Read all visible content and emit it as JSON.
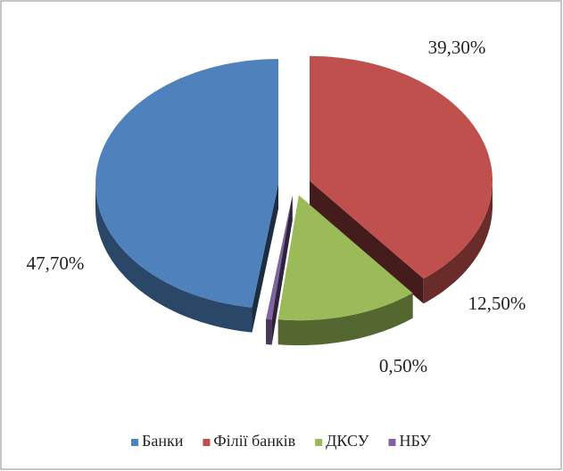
{
  "chart_data": {
    "type": "pie3d",
    "categories": [
      "Банки",
      "Філії банків",
      "ДКСУ",
      "НБУ"
    ],
    "values": [
      47.7,
      39.3,
      12.5,
      0.5
    ],
    "value_labels": [
      "47,70%",
      "39,30%",
      "12,50%",
      "0,50%"
    ],
    "colors": [
      "#4f81bd",
      "#c0504d",
      "#9bbb59",
      "#8064a2"
    ],
    "legend": "bottom"
  }
}
